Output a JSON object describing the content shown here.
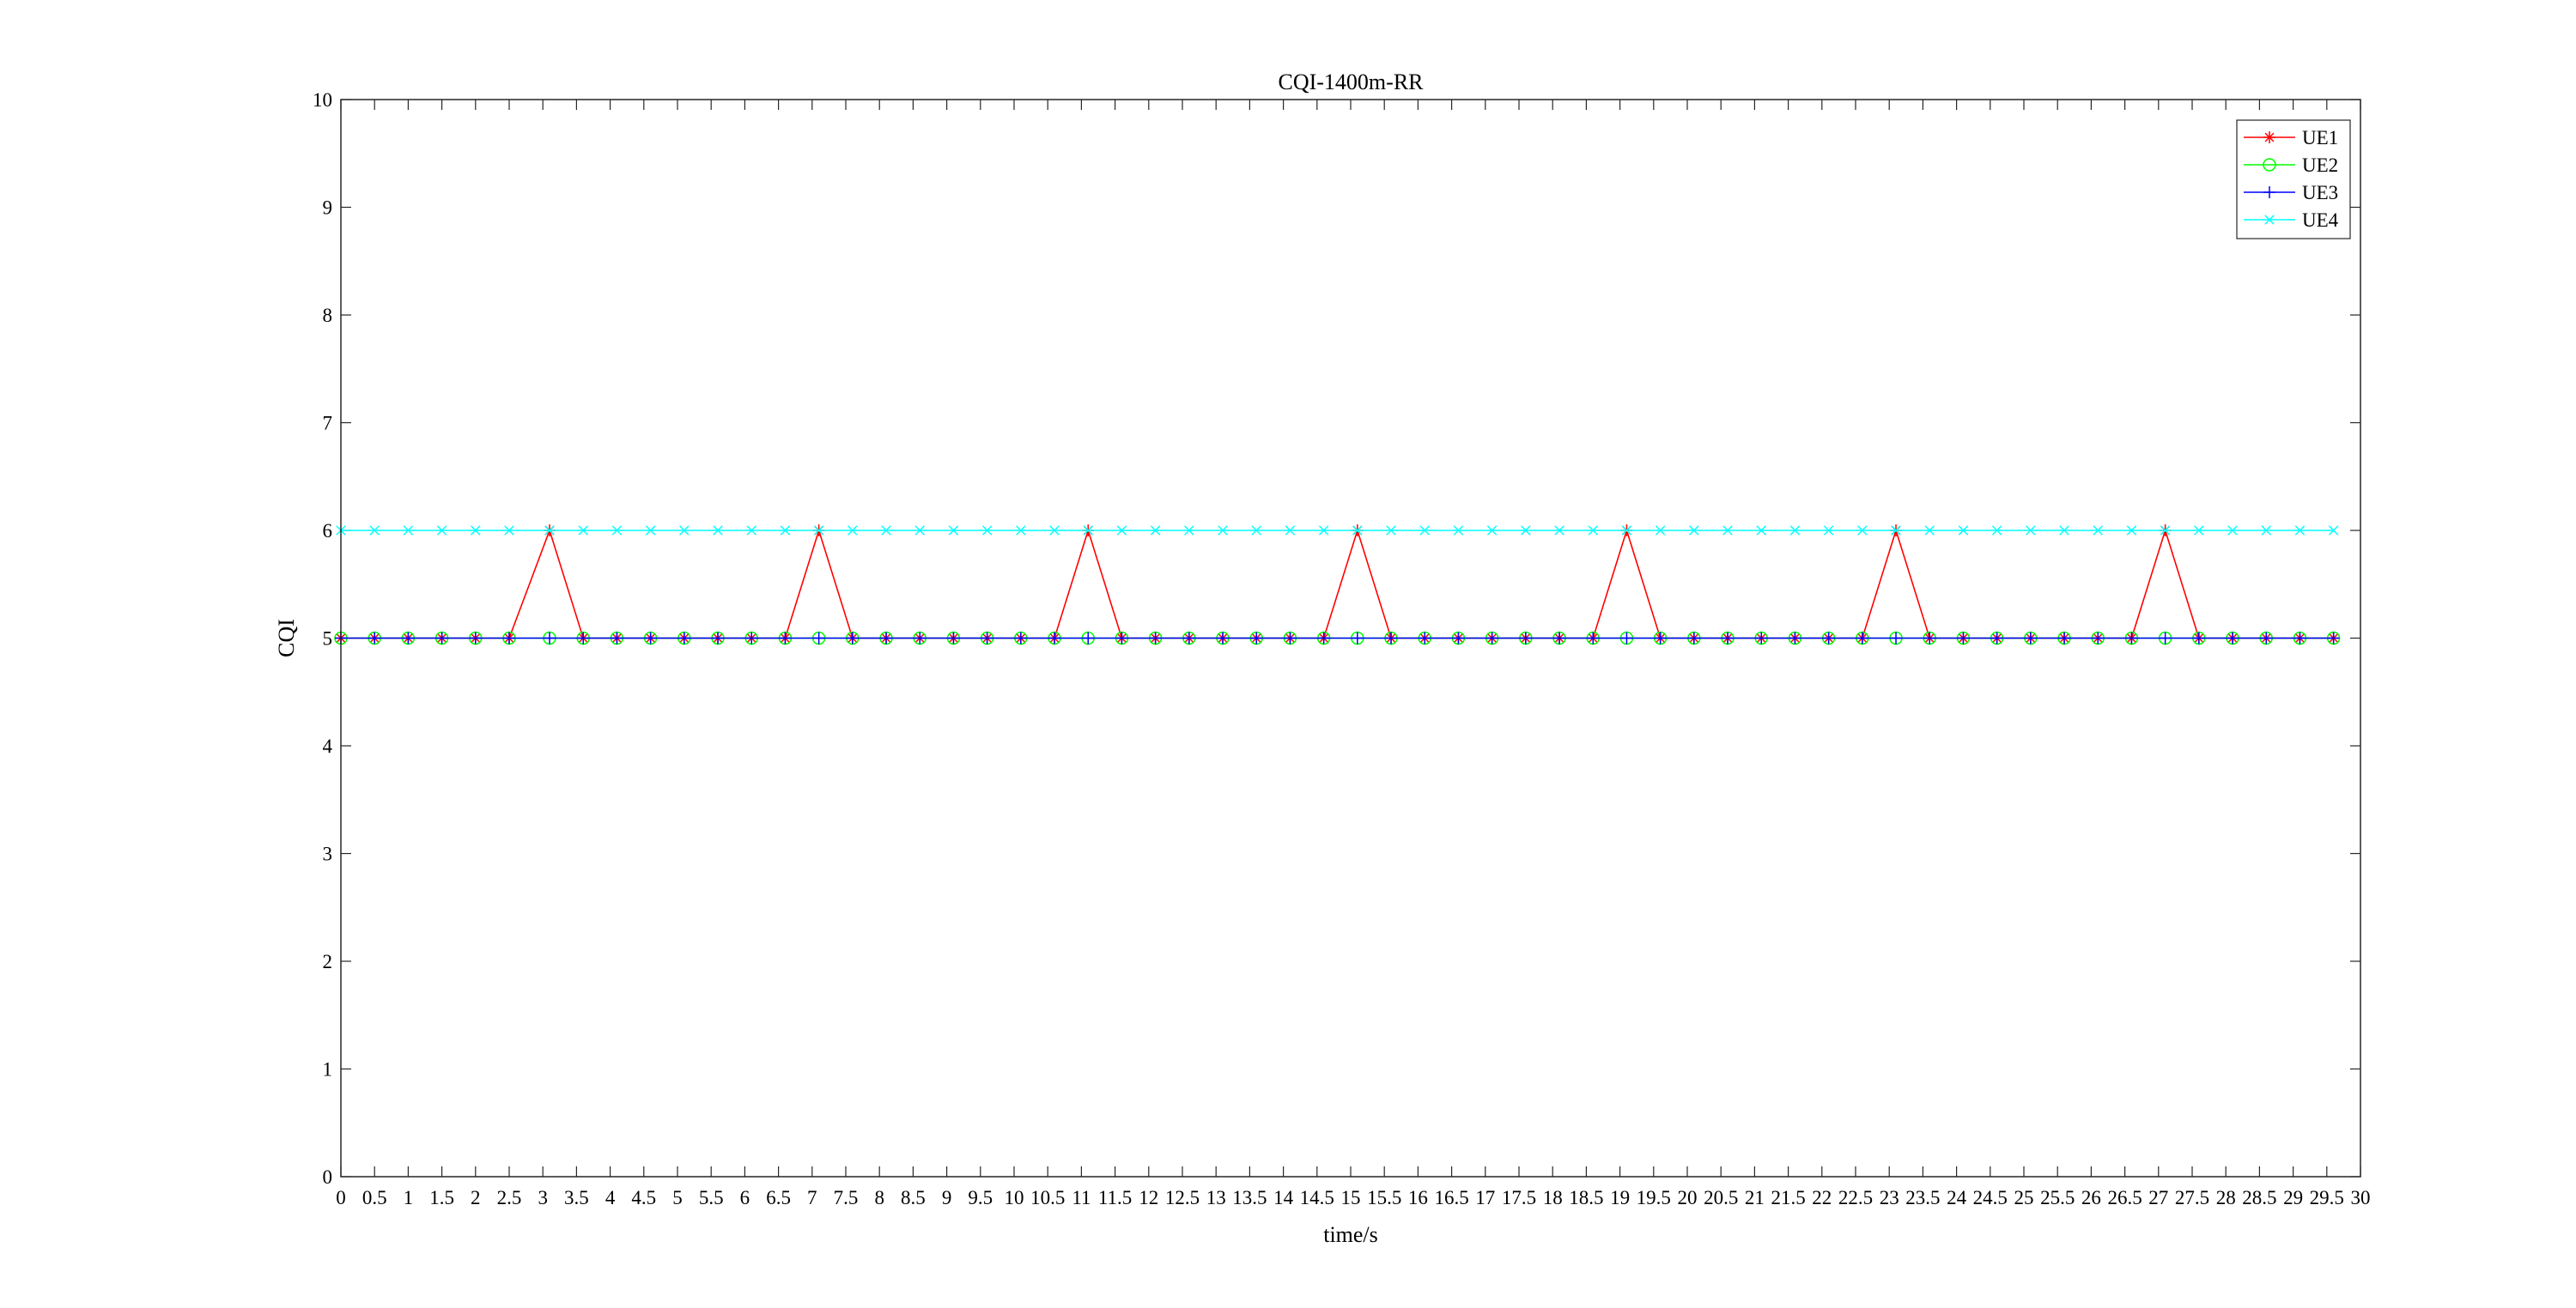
{
  "chart_data": {
    "type": "line",
    "title": "CQI-1400m-RR",
    "xlabel": "time/s",
    "ylabel": "CQI",
    "xlim": [
      0,
      30
    ],
    "ylim": [
      0,
      10
    ],
    "xticks": [
      0,
      0.5,
      1,
      1.5,
      2,
      2.5,
      3,
      3.5,
      4,
      4.5,
      5,
      5.5,
      6,
      6.5,
      7,
      7.5,
      8,
      8.5,
      9,
      9.5,
      10,
      10.5,
      11,
      11.5,
      12,
      12.5,
      13,
      13.5,
      14,
      14.5,
      15,
      15.5,
      16,
      16.5,
      17,
      17.5,
      18,
      18.5,
      19,
      19.5,
      20,
      20.5,
      21,
      21.5,
      22,
      22.5,
      23,
      23.5,
      24,
      24.5,
      25,
      25.5,
      26,
      26.5,
      27,
      27.5,
      28,
      28.5,
      29,
      29.5,
      30
    ],
    "yticks": [
      0,
      1,
      2,
      3,
      4,
      5,
      6,
      7,
      8,
      9,
      10
    ],
    "grid": false,
    "legend_position": "top-right",
    "x": [
      0,
      0.5,
      1,
      1.5,
      2,
      2.5,
      3.1,
      3.6,
      4.1,
      4.6,
      5.1,
      5.6,
      6.1,
      6.6,
      7.1,
      7.6,
      8.1,
      8.6,
      9.1,
      9.6,
      10.1,
      10.6,
      11.1,
      11.6,
      12.1,
      12.6,
      13.1,
      13.6,
      14.1,
      14.6,
      15.1,
      15.6,
      16.1,
      16.6,
      17.1,
      17.6,
      18.1,
      18.6,
      19.1,
      19.6,
      20.1,
      20.6,
      21.1,
      21.6,
      22.1,
      22.6,
      23.1,
      23.6,
      24.1,
      24.6,
      25.1,
      25.6,
      26.1,
      26.6,
      27.1,
      27.6,
      28.1,
      28.6,
      29.1,
      29.6
    ],
    "series": [
      {
        "name": "UE1",
        "color": "#ff0000",
        "marker": "star",
        "values": [
          5,
          5,
          5,
          5,
          5,
          5,
          6,
          5,
          5,
          5,
          5,
          5,
          5,
          5,
          6,
          5,
          5,
          5,
          5,
          5,
          5,
          5,
          6,
          5,
          5,
          5,
          5,
          5,
          5,
          5,
          6,
          5,
          5,
          5,
          5,
          5,
          5,
          5,
          6,
          5,
          5,
          5,
          5,
          5,
          5,
          5,
          6,
          5,
          5,
          5,
          5,
          5,
          5,
          5,
          6,
          5,
          5,
          5,
          5,
          5
        ]
      },
      {
        "name": "UE2",
        "color": "#00ff00",
        "marker": "circle",
        "values": [
          5,
          5,
          5,
          5,
          5,
          5,
          5,
          5,
          5,
          5,
          5,
          5,
          5,
          5,
          5,
          5,
          5,
          5,
          5,
          5,
          5,
          5,
          5,
          5,
          5,
          5,
          5,
          5,
          5,
          5,
          5,
          5,
          5,
          5,
          5,
          5,
          5,
          5,
          5,
          5,
          5,
          5,
          5,
          5,
          5,
          5,
          5,
          5,
          5,
          5,
          5,
          5,
          5,
          5,
          5,
          5,
          5,
          5,
          5,
          5
        ]
      },
      {
        "name": "UE3",
        "color": "#0000ff",
        "marker": "plus",
        "values": [
          5,
          5,
          5,
          5,
          5,
          5,
          5,
          5,
          5,
          5,
          5,
          5,
          5,
          5,
          5,
          5,
          5,
          5,
          5,
          5,
          5,
          5,
          5,
          5,
          5,
          5,
          5,
          5,
          5,
          5,
          5,
          5,
          5,
          5,
          5,
          5,
          5,
          5,
          5,
          5,
          5,
          5,
          5,
          5,
          5,
          5,
          5,
          5,
          5,
          5,
          5,
          5,
          5,
          5,
          5,
          5,
          5,
          5,
          5,
          5
        ]
      },
      {
        "name": "UE4",
        "color": "#00ffff",
        "marker": "x",
        "values": [
          6,
          6,
          6,
          6,
          6,
          6,
          6,
          6,
          6,
          6,
          6,
          6,
          6,
          6,
          6,
          6,
          6,
          6,
          6,
          6,
          6,
          6,
          6,
          6,
          6,
          6,
          6,
          6,
          6,
          6,
          6,
          6,
          6,
          6,
          6,
          6,
          6,
          6,
          6,
          6,
          6,
          6,
          6,
          6,
          6,
          6,
          6,
          6,
          6,
          6,
          6,
          6,
          6,
          6,
          6,
          6,
          6,
          6,
          6,
          6
        ]
      }
    ]
  }
}
